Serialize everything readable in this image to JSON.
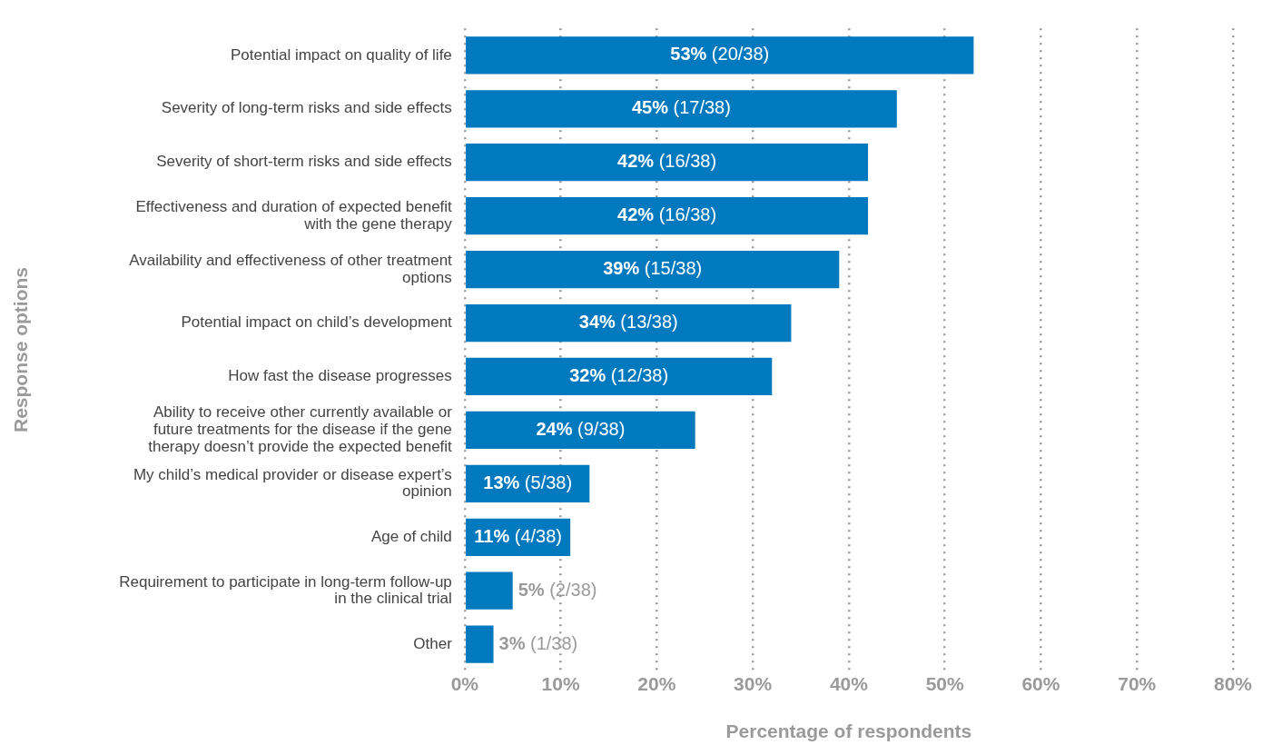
{
  "chart_data": {
    "type": "bar",
    "orientation": "horizontal",
    "xlabel": "Percentage of respondents",
    "ylabel": "Response options",
    "categories": [
      "Potential impact on quality of life",
      "Severity of long-term risks and side effects",
      "Severity of short-term risks and side effects",
      "Effectiveness and duration of expected benefit with the gene therapy",
      "Availability and effectiveness of other treatment options",
      "Potential impact on child’s development",
      "How fast the disease progresses",
      "Ability to receive other currently available or future treatments for the disease if the gene therapy doesn’t provide the expected benefit",
      "My child’s medical provider or disease expert’s opinion",
      "Age of child",
      "Requirement to participate in long-term follow-up in the clinical trial",
      "Other"
    ],
    "values": [
      53,
      45,
      42,
      42,
      39,
      34,
      32,
      24,
      13,
      11,
      5,
      3
    ],
    "value_labels": [
      "53% (20/38)",
      "45% (17/38)",
      "42% (16/38)",
      "42% (16/38)",
      "39% (15/38)",
      "34% (13/38)",
      "32% (12/38)",
      "24% (9/38)",
      "13% (5/38)",
      "11% (4/38)",
      "5% (2/38)",
      "3% (1/38)"
    ],
    "color": "#0079be",
    "xlim": [
      0,
      80
    ],
    "xticks": [
      {
        "value": 0,
        "label": "0%"
      },
      {
        "value": 10,
        "label": "10%"
      },
      {
        "value": 20,
        "label": "20%"
      },
      {
        "value": 30,
        "label": "30%"
      },
      {
        "value": 40,
        "label": "40%"
      },
      {
        "value": 50,
        "label": "50%"
      },
      {
        "value": 60,
        "label": "60%"
      },
      {
        "value": 70,
        "label": "70%"
      },
      {
        "value": 80,
        "label": "80%"
      }
    ],
    "grid": "x",
    "legend": false
  }
}
